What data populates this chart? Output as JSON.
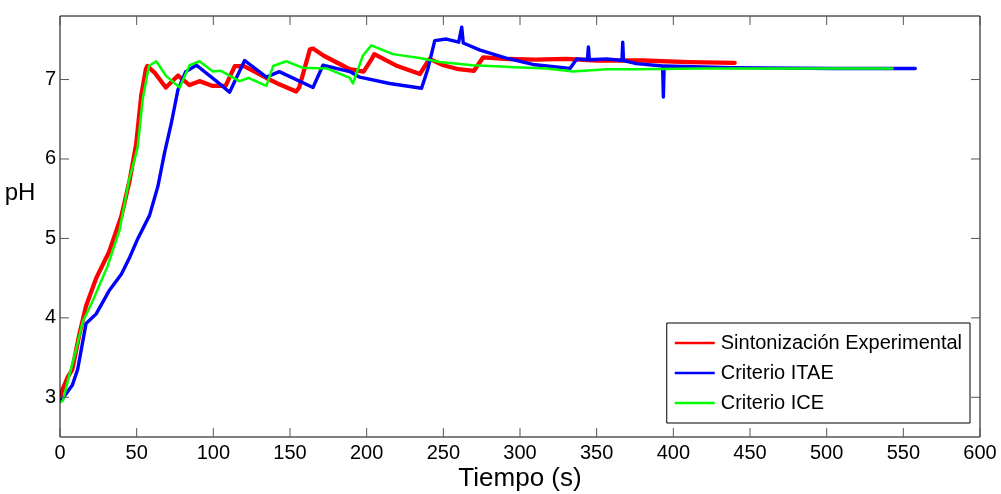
{
  "chart_data": {
    "type": "line",
    "xlabel": "Tiempo (s)",
    "ylabel": "pH",
    "xlim": [
      0,
      600
    ],
    "xticks": [
      0,
      50,
      100,
      150,
      200,
      250,
      300,
      350,
      400,
      450,
      500,
      550,
      600
    ],
    "ylim": [
      2.5,
      7.8
    ],
    "yticks": [
      3,
      4,
      5,
      6,
      7
    ],
    "grid": false,
    "legend": "bottom right",
    "line_style": "solid",
    "series": [
      {
        "name": "Sintonización Experimental",
        "color": "#ff0000",
        "x": [
          0,
          1.7,
          5,
          8,
          12.7,
          17,
          23.6,
          32,
          40,
          45.4,
          49.7,
          53,
          56,
          57,
          62,
          69,
          77,
          84.5,
          91,
          99.6,
          108,
          114,
          120,
          134.6,
          143,
          154,
          156,
          163,
          165,
          172,
          189,
          198,
          203,
          205,
          220,
          234.7,
          241,
          250,
          260,
          270,
          276,
          290,
          310,
          330,
          350,
          380,
          410,
          440
        ],
        "values": [
          3.0,
          3.1,
          3.25,
          3.35,
          3.8,
          4.15,
          4.5,
          4.83,
          5.28,
          5.73,
          6.19,
          6.8,
          7.13,
          7.17,
          7.08,
          6.9,
          7.05,
          6.93,
          6.98,
          6.92,
          6.92,
          7.17,
          7.17,
          7.02,
          6.94,
          6.85,
          6.9,
          7.38,
          7.39,
          7.3,
          7.13,
          7.1,
          7.25,
          7.32,
          7.17,
          7.07,
          7.26,
          7.18,
          7.13,
          7.11,
          7.28,
          7.26,
          7.25,
          7.26,
          7.24,
          7.24,
          7.22,
          7.21
        ]
      },
      {
        "name": "Criterio ITAE",
        "color": "#0000ff",
        "x": [
          0.8,
          8,
          11.5,
          17,
          23.6,
          32,
          40,
          45.4,
          50.8,
          58.4,
          63.9,
          68.2,
          72.6,
          76.9,
          82,
          89,
          102,
          110.6,
          120.4,
          134.6,
          143,
          165,
          171.5,
          189,
          195.5,
          215,
          235.8,
          240,
          244.4,
          252,
          260,
          262,
          263,
          274,
          291,
          308.4,
          332.6,
          337,
          344,
          344.6,
          345.2,
          356.7,
          366.5,
          367,
          367.5,
          376,
          393,
          393.5,
          394,
          439,
          504,
          557.8
        ],
        "values": [
          2.96,
          3.15,
          3.35,
          3.93,
          4.05,
          4.34,
          4.55,
          4.76,
          5.0,
          5.29,
          5.66,
          6.08,
          6.45,
          6.87,
          7.1,
          7.18,
          6.98,
          6.84,
          7.24,
          7.03,
          7.1,
          6.9,
          7.18,
          7.1,
          7.03,
          6.95,
          6.89,
          7.14,
          7.49,
          7.51,
          7.47,
          7.66,
          7.46,
          7.37,
          7.27,
          7.19,
          7.14,
          7.26,
          7.25,
          7.41,
          7.25,
          7.26,
          7.24,
          7.47,
          7.24,
          7.2,
          7.17,
          6.78,
          7.17,
          7.15,
          7.14,
          7.14
        ]
      },
      {
        "name": "Criterio ICE",
        "color": "#00ff00",
        "x": [
          0.5,
          2,
          5,
          10.5,
          14.8,
          21,
          31,
          38.8,
          45,
          50.6,
          54,
          58,
          62.8,
          69,
          78,
          84.5,
          91,
          99.7,
          105,
          117,
          123,
          134.6,
          139,
          147.6,
          158,
          174,
          189,
          191,
          197.5,
          203,
          217,
          234.6,
          247.7,
          269,
          291,
          317.5,
          334.6,
          356.7,
          376,
          420,
          480,
          543
        ],
        "values": [
          2.94,
          2.96,
          3.2,
          3.6,
          3.95,
          4.2,
          4.65,
          5.1,
          5.73,
          6.14,
          6.76,
          7.17,
          7.23,
          7.05,
          6.9,
          7.18,
          7.23,
          7.1,
          7.11,
          6.98,
          7.02,
          6.92,
          7.17,
          7.23,
          7.15,
          7.14,
          7.02,
          6.95,
          7.3,
          7.43,
          7.32,
          7.27,
          7.22,
          7.18,
          7.16,
          7.14,
          7.1,
          7.13,
          7.13,
          7.14,
          7.14,
          7.14
        ]
      }
    ]
  }
}
